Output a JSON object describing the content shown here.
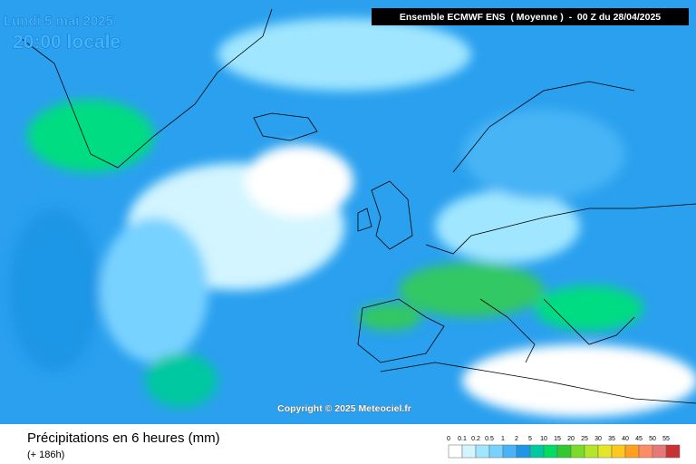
{
  "header": {
    "date": "Lundi 5 mai 2025",
    "time": "20:00 locale",
    "model": "Ensemble ECMWF ENS  ( Moyenne )  -  00 Z du 28/04/2025"
  },
  "copyright": "Copyright © 2025 Meteociel.fr",
  "footer": {
    "title": "Précipitations en 6 heures (mm)",
    "lead": "(+ 186h)"
  },
  "legend": {
    "labels": [
      "0",
      "0.1",
      "0.2",
      "0.5",
      "1",
      "2",
      "5",
      "10",
      "15",
      "20",
      "25",
      "30",
      "35",
      "40",
      "45",
      "50",
      "55"
    ],
    "colors": [
      "#ffffff",
      "#d2f5ff",
      "#a0e6ff",
      "#78d2ff",
      "#46b4f5",
      "#1e96e6",
      "#00c8a0",
      "#00dc64",
      "#32c832",
      "#78dc28",
      "#b4e628",
      "#e6e628",
      "#ffc81e",
      "#ffa01e",
      "#ff8c64",
      "#e67878",
      "#c83232"
    ]
  }
}
